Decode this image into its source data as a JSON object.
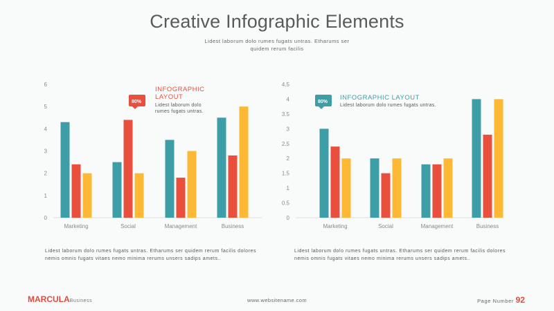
{
  "header": {
    "title": "Creative Infographic Elements",
    "subtitle": "Lidest laborum dolo rumes fugats untras. Etharums ser quidem rerum facilis"
  },
  "colors": {
    "teal": "#3d9ea7",
    "red": "#e94f3d",
    "yellow": "#fdb936",
    "axis": "#dddddd"
  },
  "charts": [
    {
      "badge": "80%",
      "badge_color": "#e94f3d",
      "callout_title_lines": [
        "INFOGRAPHIC",
        "LAYOUT"
      ],
      "callout_title_color": "#e94f3d",
      "callout_text_lines": [
        "Lidest laborum dolo",
        "rumes fugats untras."
      ],
      "paragraph": "Lidest laborum dolo rumes fugats untras. Etharums ser quidem rerum facilis dolores nemis omnis fugats vitaes nemo minima rerums unsers sadips amets.."
    },
    {
      "badge": "80%",
      "badge_color": "#3d9ea7",
      "callout_title_lines": [
        "INFOGRAPHIC LAYOUT"
      ],
      "callout_title_color": "#3d9ea7",
      "callout_text_lines": [
        "Lidest laborum dolo rumes fugats untras."
      ],
      "paragraph": "Lidest laborum dolo rumes fugats untras. Etharums ser quidem rerum facilis dolores nemis omnis fugats vitaes nemo minima rerums unsers sadips amets.."
    }
  ],
  "chart_data": [
    {
      "type": "bar",
      "categories": [
        "Marketing",
        "Social",
        "Management",
        "Business"
      ],
      "series": [
        {
          "values": [
            4.3,
            2.5,
            3.5,
            4.5
          ]
        },
        {
          "values": [
            2.4,
            4.4,
            1.8,
            2.8
          ]
        },
        {
          "values": [
            2.0,
            2.0,
            3.0,
            5.0
          ]
        }
      ],
      "ylim": [
        0,
        6
      ],
      "yticks": [
        "0",
        "1",
        "2",
        "3",
        "4",
        "5",
        "6"
      ]
    },
    {
      "type": "bar",
      "categories": [
        "Marketing",
        "Social",
        "Management",
        "Business"
      ],
      "series": [
        {
          "values": [
            3.0,
            2.0,
            1.8,
            4.0
          ]
        },
        {
          "values": [
            2.4,
            1.5,
            1.8,
            2.8
          ]
        },
        {
          "values": [
            2.0,
            2.0,
            2.0,
            4.0
          ]
        }
      ],
      "ylim": [
        0,
        4.5
      ],
      "yticks": [
        "0",
        "0.5",
        "1",
        "1.5",
        "2",
        "2.5",
        "3",
        "3.5",
        "4",
        "4.5"
      ]
    }
  ],
  "footer": {
    "brand": "MARCULA",
    "brand_sub": "Business",
    "website": "www.websitename.com",
    "page_label": "Page Number",
    "page_number": "92"
  }
}
